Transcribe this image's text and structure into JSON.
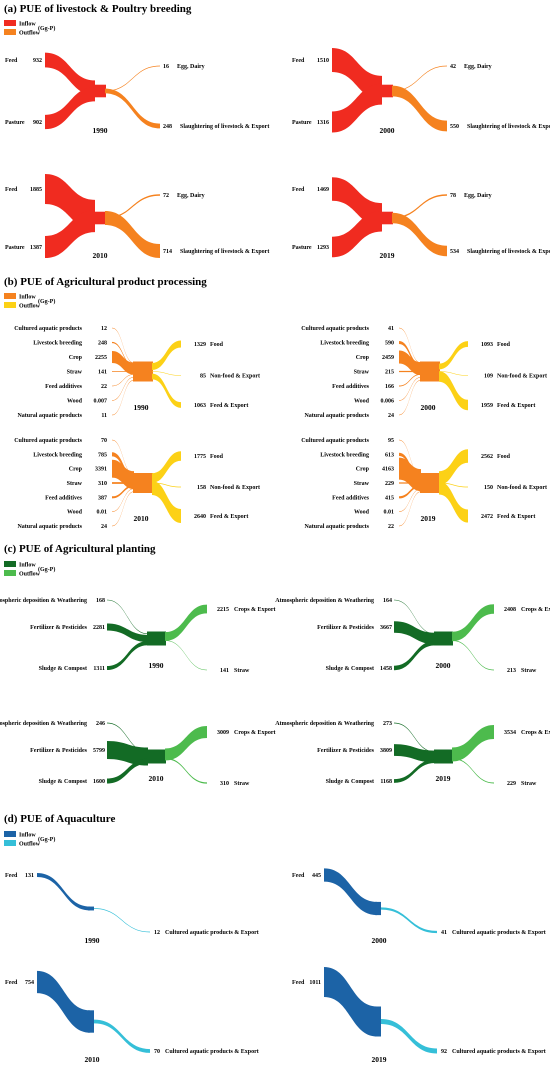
{
  "colors": {
    "a": {
      "in": "#f02b20",
      "out": "#f5821f"
    },
    "b": {
      "in": "#f5821f",
      "out": "#fcd116"
    },
    "c": {
      "in": "#136b25",
      "out": "#4dbb4d"
    },
    "d": {
      "in": "#1c63a6",
      "out": "#35bfd8"
    }
  },
  "sections": [
    {
      "id": "a",
      "title": "(a) PUE of livestock & Poultry breeding",
      "legend": {
        "inflow": "Inflow",
        "outflow": "Outflow",
        "unit": "(Gg-P)"
      },
      "panels": [
        {
          "year": "1990",
          "inputs": [
            {
              "label": "Feed",
              "value": "932"
            },
            {
              "label": "Pasture",
              "value": "902"
            }
          ],
          "outputs": [
            {
              "value": "16",
              "label": "Egg, Dairy"
            },
            {
              "value": "248",
              "label": "Slaughtering of livestock & Export"
            }
          ]
        },
        {
          "year": "2000",
          "inputs": [
            {
              "label": "Feed",
              "value": "1510"
            },
            {
              "label": "Pasture",
              "value": "1316"
            }
          ],
          "outputs": [
            {
              "value": "42",
              "label": "Egg, Dairy"
            },
            {
              "value": "550",
              "label": "Slaughtering of livestock & Export"
            }
          ]
        },
        {
          "year": "2010",
          "inputs": [
            {
              "label": "Feed",
              "value": "1885"
            },
            {
              "label": "Pasture",
              "value": "1387"
            }
          ],
          "outputs": [
            {
              "value": "72",
              "label": "Egg, Dairy"
            },
            {
              "value": "714",
              "label": "Slaughtering of livestock & Export"
            }
          ]
        },
        {
          "year": "2019",
          "inputs": [
            {
              "label": "Feed",
              "value": "1469"
            },
            {
              "label": "Pasture",
              "value": "1293"
            }
          ],
          "outputs": [
            {
              "value": "78",
              "label": "Egg, Dairy"
            },
            {
              "value": "534",
              "label": "Slaughtering of livestock & Export"
            }
          ]
        }
      ]
    },
    {
      "id": "b",
      "title": "(b) PUE of Agricultural product processing",
      "legend": {
        "inflow": "Inflow",
        "outflow": "Outflow",
        "unit": "(Gg-P)"
      },
      "panels": [
        {
          "year": "1990",
          "inputs": [
            {
              "label": "Cultured aquatic products",
              "value": "12"
            },
            {
              "label": "Livestock breeding",
              "value": "248"
            },
            {
              "label": "Crop",
              "value": "2255"
            },
            {
              "label": "Straw",
              "value": "141"
            },
            {
              "label": "Feed additives",
              "value": "22"
            },
            {
              "label": "Wood",
              "value": "0.007"
            },
            {
              "label": "Natural aquatic products",
              "value": "11"
            }
          ],
          "outputs": [
            {
              "value": "1329",
              "label": "Food"
            },
            {
              "value": "85",
              "label": "Non-food & Export"
            },
            {
              "value": "1063",
              "label": "Feed & Export"
            }
          ]
        },
        {
          "year": "2000",
          "inputs": [
            {
              "label": "Cultured aquatic products",
              "value": "41"
            },
            {
              "label": "Livestock breeding",
              "value": "590"
            },
            {
              "label": "Crop",
              "value": "2459"
            },
            {
              "label": "Straw",
              "value": "215"
            },
            {
              "label": "Feed additives",
              "value": "166"
            },
            {
              "label": "Wood",
              "value": "0.006"
            },
            {
              "label": "Natural aquatic products",
              "value": "24"
            }
          ],
          "outputs": [
            {
              "value": "1093",
              "label": "Food"
            },
            {
              "value": "109",
              "label": "Non-food & Export"
            },
            {
              "value": "1959",
              "label": "Feed & Export"
            }
          ]
        },
        {
          "year": "2010",
          "inputs": [
            {
              "label": "Cultured aquatic products",
              "value": "70"
            },
            {
              "label": "Livestock breeding",
              "value": "785"
            },
            {
              "label": "Crop",
              "value": "3391"
            },
            {
              "label": "Straw",
              "value": "310"
            },
            {
              "label": "Feed additives",
              "value": "387"
            },
            {
              "label": "Wood",
              "value": "0.01"
            },
            {
              "label": "Natural aquatic products",
              "value": "24"
            }
          ],
          "outputs": [
            {
              "value": "1775",
              "label": "Food"
            },
            {
              "value": "158",
              "label": "Non-food & Export"
            },
            {
              "value": "2640",
              "label": "Feed & Export"
            }
          ]
        },
        {
          "year": "2019",
          "inputs": [
            {
              "label": "Cultured aquatic products",
              "value": "95"
            },
            {
              "label": "Livestock breeding",
              "value": "613"
            },
            {
              "label": "Crop",
              "value": "4163"
            },
            {
              "label": "Straw",
              "value": "229"
            },
            {
              "label": "Feed additives",
              "value": "415"
            },
            {
              "label": "Wood",
              "value": "0.01"
            },
            {
              "label": "Natural aquatic products",
              "value": "22"
            }
          ],
          "outputs": [
            {
              "value": "2562",
              "label": "Food"
            },
            {
              "value": "150",
              "label": "Non-food & Export"
            },
            {
              "value": "2472",
              "label": "Feed & Export"
            }
          ]
        }
      ]
    },
    {
      "id": "c",
      "title": "(c) PUE of Agricultural planting",
      "legend": {
        "inflow": "Inflow",
        "outflow": "Outflow",
        "unit": "(Gg-P)"
      },
      "panels": [
        {
          "year": "1990",
          "inputs": [
            {
              "label": "Atmospheric deposition & Weathering",
              "value": "168"
            },
            {
              "label": "Fertilizer & Pesticides",
              "value": "2281"
            },
            {
              "label": "Sludge & Compost",
              "value": "1311"
            }
          ],
          "outputs": [
            {
              "value": "2215",
              "label": "Crops & Export"
            },
            {
              "value": "141",
              "label": "Straw"
            }
          ]
        },
        {
          "year": "2000",
          "inputs": [
            {
              "label": "Atmospheric deposition & Weathering",
              "value": "164"
            },
            {
              "label": "Fertilizer & Pesticides",
              "value": "3667"
            },
            {
              "label": "Sludge & Compost",
              "value": "1458"
            }
          ],
          "outputs": [
            {
              "value": "2408",
              "label": "Crops & Export"
            },
            {
              "value": "213",
              "label": "Straw"
            }
          ]
        },
        {
          "year": "2010",
          "inputs": [
            {
              "label": "Atmospheric deposition & Weathering",
              "value": "246"
            },
            {
              "label": "Fertilizer & Pesticides",
              "value": "5799"
            },
            {
              "label": "Sludge & Compost",
              "value": "1600"
            }
          ],
          "outputs": [
            {
              "value": "3009",
              "label": "Crops & Export"
            },
            {
              "value": "310",
              "label": "Straw"
            }
          ]
        },
        {
          "year": "2019",
          "inputs": [
            {
              "label": "Atmospheric deposition & Weathering",
              "value": "273"
            },
            {
              "label": "Fertilizer & Pesticides",
              "value": "3809"
            },
            {
              "label": "Sludge & Compost",
              "value": "1168"
            }
          ],
          "outputs": [
            {
              "value": "3534",
              "label": "Crops & Export"
            },
            {
              "value": "229",
              "label": "Straw"
            }
          ]
        }
      ]
    },
    {
      "id": "d",
      "title": "(d) PUE of Aquaculture",
      "legend": {
        "inflow": "Inflow",
        "outflow": "Outflow",
        "unit": "(Gg-P)"
      },
      "panels": [
        {
          "year": "1990",
          "inputs": [
            {
              "label": "Feed",
              "value": "131"
            }
          ],
          "outputs": [
            {
              "value": "12",
              "label": "Cultured aquatic products & Export"
            }
          ]
        },
        {
          "year": "2000",
          "inputs": [
            {
              "label": "Feed",
              "value": "445"
            }
          ],
          "outputs": [
            {
              "value": "41",
              "label": "Cultured aquatic products & Export"
            }
          ]
        },
        {
          "year": "2010",
          "inputs": [
            {
              "label": "Feed",
              "value": "754"
            }
          ],
          "outputs": [
            {
              "value": "70",
              "label": "Cultured aquatic products & Export"
            }
          ]
        },
        {
          "year": "2019",
          "inputs": [
            {
              "label": "Feed",
              "value": "1011"
            }
          ],
          "outputs": [
            {
              "value": "92",
              "label": "Cultured aquatic products & Export"
            }
          ]
        }
      ]
    }
  ]
}
